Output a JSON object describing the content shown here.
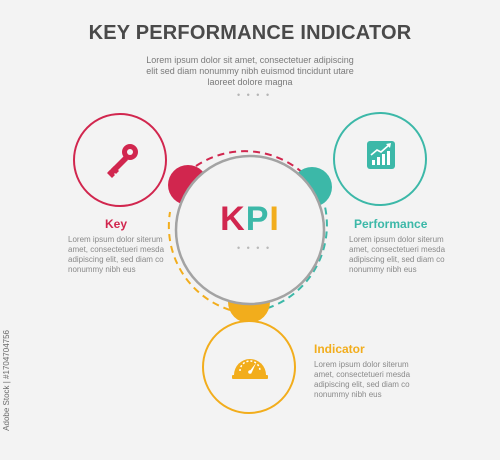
{
  "header": {
    "title": "KEY PERFORMANCE INDICATOR",
    "subtitle_lines": [
      "Lorem ipsum dolor sit amet, consectetuer adipiscing",
      "elit sed diam nonummy nibh euismod tincidunt utare",
      "laoreet dolore magna"
    ],
    "dots": "• • • •"
  },
  "center": {
    "kpi_letters": [
      "K",
      "P",
      "I"
    ],
    "dots": "• • • •"
  },
  "items": [
    {
      "label": "Key",
      "icon": "key-icon",
      "color": "#d1264e",
      "desc_lines": [
        "Lorem ipsum dolor siterum",
        "amet, consectetueri mesda",
        "adipiscing elit, sed diam co",
        "nonummy nibh eus"
      ]
    },
    {
      "label": "Performance",
      "icon": "growth-chart-icon",
      "color": "#3cb8a8",
      "desc_lines": [
        "Lorem ipsum dolor siterum",
        "amet, consectetueri mesda",
        "adipiscing elit, sed diam co",
        "nonummy nibh eus"
      ]
    },
    {
      "label": "Indicator",
      "icon": "gauge-icon",
      "color": "#f2ad1c",
      "desc_lines": [
        "Lorem ipsum dolor siterum",
        "amet, consectetueri mesda",
        "adipiscing elit, sed diam co",
        "nonummy nibh eus"
      ]
    }
  ],
  "watermark": "Adobe Stock | #1704704756"
}
